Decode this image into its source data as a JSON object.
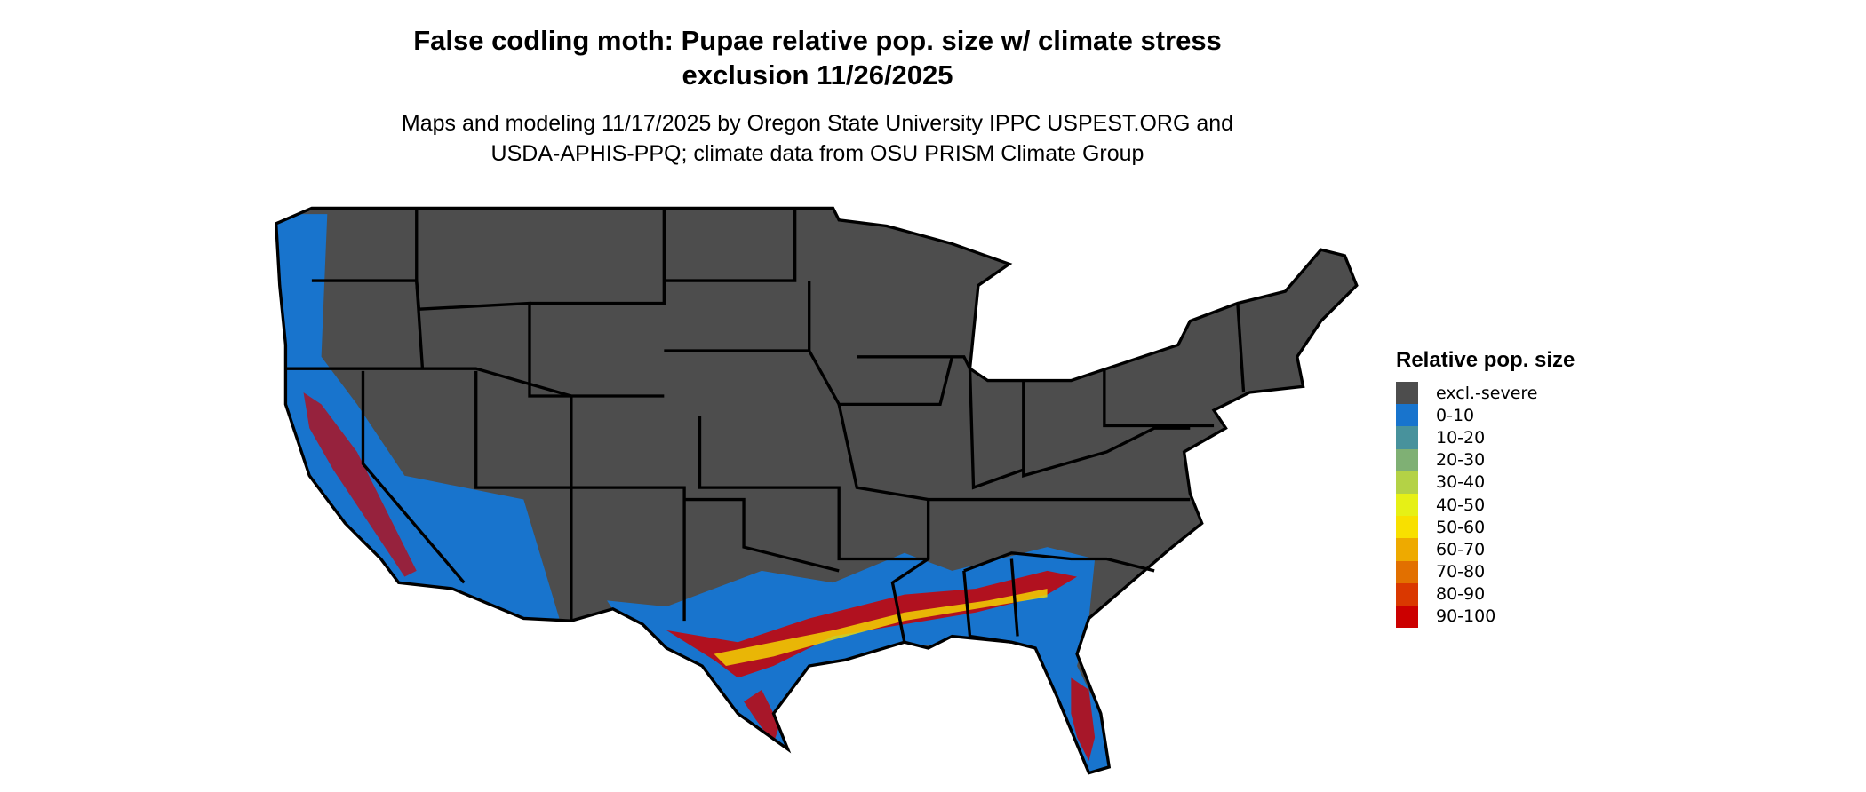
{
  "title_line1": "False codling moth: Pupae relative pop. size w/ climate stress",
  "title_line2": "exclusion 11/26/2025",
  "subtitle_line1": "Maps and modeling 11/17/2025 by Oregon State University IPPC USPEST.ORG and",
  "subtitle_line2": "USDA-APHIS-PPQ; climate data from OSU PRISM Climate Group",
  "legend": {
    "title": "Relative pop. size",
    "items": [
      {
        "label": "excl.-severe",
        "color": "#4d4d4d"
      },
      {
        "label": "0-10",
        "color": "#1874cd"
      },
      {
        "label": "10-20",
        "color": "#48929c"
      },
      {
        "label": "20-30",
        "color": "#7fb074"
      },
      {
        "label": "30-40",
        "color": "#b4d246"
      },
      {
        "label": "40-50",
        "color": "#e6f016"
      },
      {
        "label": "50-60",
        "color": "#f8e000"
      },
      {
        "label": "60-70",
        "color": "#eeaa00"
      },
      {
        "label": "70-80",
        "color": "#e27000"
      },
      {
        "label": "80-90",
        "color": "#da3800"
      },
      {
        "label": "90-100",
        "color": "#cc0000"
      }
    ]
  },
  "colors": {
    "land": "#4d4d4d",
    "borders": "#000000",
    "low": "#1874cd",
    "high": "#cc0000",
    "mid": "#f8e000"
  }
}
